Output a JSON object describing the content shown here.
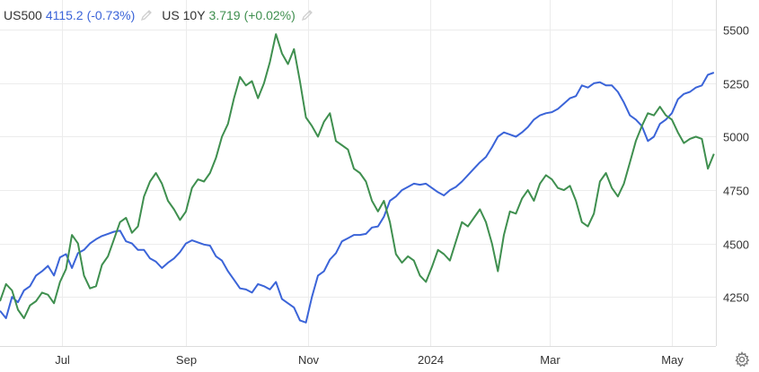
{
  "legend": [
    {
      "symbol": "US500",
      "value": "4115.2",
      "change": "(-0.73%)",
      "color": "#3b64d8"
    },
    {
      "symbol": "US 10Y",
      "value": "3.719",
      "change": "(+0.02%)",
      "color": "#3f8f4f"
    }
  ],
  "chart_data": {
    "type": "line",
    "y_ticks": [
      "5500",
      "5250",
      "5000",
      "4750",
      "4500",
      "4250"
    ],
    "y_tick_values": [
      5500,
      5250,
      5000,
      4750,
      4500,
      4250
    ],
    "ylim": [
      4020,
      5640
    ],
    "x_ticks": [
      "Jul",
      "Sep",
      "Nov",
      "2024",
      "Mar",
      "May"
    ],
    "x_tick_dates": [
      "2023-07-01",
      "2023-09-01",
      "2023-11-01",
      "2024-01-01",
      "2024-03-01",
      "2024-05-01"
    ],
    "xlim": [
      "2023-05-31",
      "2024-05-23"
    ],
    "grid": true,
    "legend_position": "top-left",
    "series": [
      {
        "name": "US500",
        "color": "#3b64d8",
        "points": [
          [
            "2023-05-31",
            4185
          ],
          [
            "2023-06-03",
            4150
          ],
          [
            "2023-06-06",
            4250
          ],
          [
            "2023-06-09",
            4225
          ],
          [
            "2023-06-12",
            4280
          ],
          [
            "2023-06-15",
            4300
          ],
          [
            "2023-06-18",
            4350
          ],
          [
            "2023-06-21",
            4370
          ],
          [
            "2023-06-24",
            4395
          ],
          [
            "2023-06-27",
            4350
          ],
          [
            "2023-06-30",
            4435
          ],
          [
            "2023-07-03",
            4450
          ],
          [
            "2023-07-06",
            4385
          ],
          [
            "2023-07-09",
            4455
          ],
          [
            "2023-07-12",
            4470
          ],
          [
            "2023-07-15",
            4500
          ],
          [
            "2023-07-18",
            4520
          ],
          [
            "2023-07-21",
            4535
          ],
          [
            "2023-07-24",
            4545
          ],
          [
            "2023-07-27",
            4555
          ],
          [
            "2023-07-30",
            4560
          ],
          [
            "2023-08-02",
            4510
          ],
          [
            "2023-08-05",
            4500
          ],
          [
            "2023-08-08",
            4470
          ],
          [
            "2023-08-11",
            4470
          ],
          [
            "2023-08-14",
            4430
          ],
          [
            "2023-08-17",
            4415
          ],
          [
            "2023-08-20",
            4385
          ],
          [
            "2023-08-23",
            4410
          ],
          [
            "2023-08-26",
            4430
          ],
          [
            "2023-08-29",
            4460
          ],
          [
            "2023-09-01",
            4500
          ],
          [
            "2023-09-04",
            4515
          ],
          [
            "2023-09-07",
            4505
          ],
          [
            "2023-09-10",
            4495
          ],
          [
            "2023-09-13",
            4490
          ],
          [
            "2023-09-16",
            4440
          ],
          [
            "2023-09-19",
            4420
          ],
          [
            "2023-09-22",
            4370
          ],
          [
            "2023-09-25",
            4330
          ],
          [
            "2023-09-28",
            4290
          ],
          [
            "2023-10-01",
            4285
          ],
          [
            "2023-10-04",
            4270
          ],
          [
            "2023-10-07",
            4310
          ],
          [
            "2023-10-10",
            4300
          ],
          [
            "2023-10-13",
            4285
          ],
          [
            "2023-10-16",
            4320
          ],
          [
            "2023-10-19",
            4240
          ],
          [
            "2023-10-22",
            4220
          ],
          [
            "2023-10-25",
            4200
          ],
          [
            "2023-10-28",
            4140
          ],
          [
            "2023-10-31",
            4130
          ],
          [
            "2023-11-03",
            4250
          ],
          [
            "2023-11-06",
            4350
          ],
          [
            "2023-11-09",
            4370
          ],
          [
            "2023-11-12",
            4425
          ],
          [
            "2023-11-15",
            4455
          ],
          [
            "2023-11-18",
            4510
          ],
          [
            "2023-11-21",
            4525
          ],
          [
            "2023-11-24",
            4540
          ],
          [
            "2023-11-27",
            4540
          ],
          [
            "2023-11-30",
            4545
          ],
          [
            "2023-12-03",
            4575
          ],
          [
            "2023-12-06",
            4580
          ],
          [
            "2023-12-09",
            4625
          ],
          [
            "2023-12-12",
            4700
          ],
          [
            "2023-12-15",
            4720
          ],
          [
            "2023-12-18",
            4750
          ],
          [
            "2023-12-21",
            4765
          ],
          [
            "2023-12-24",
            4780
          ],
          [
            "2023-12-27",
            4775
          ],
          [
            "2023-12-30",
            4780
          ],
          [
            "2024-01-02",
            4760
          ],
          [
            "2024-01-05",
            4740
          ],
          [
            "2024-01-08",
            4725
          ],
          [
            "2024-01-11",
            4750
          ],
          [
            "2024-01-14",
            4765
          ],
          [
            "2024-01-17",
            4790
          ],
          [
            "2024-01-20",
            4820
          ],
          [
            "2024-01-23",
            4850
          ],
          [
            "2024-01-26",
            4880
          ],
          [
            "2024-01-29",
            4905
          ],
          [
            "2024-02-01",
            4950
          ],
          [
            "2024-02-04",
            5000
          ],
          [
            "2024-02-07",
            5020
          ],
          [
            "2024-02-10",
            5010
          ],
          [
            "2024-02-13",
            5000
          ],
          [
            "2024-02-16",
            5020
          ],
          [
            "2024-02-19",
            5045
          ],
          [
            "2024-02-22",
            5080
          ],
          [
            "2024-02-25",
            5100
          ],
          [
            "2024-02-28",
            5110
          ],
          [
            "2024-03-02",
            5115
          ],
          [
            "2024-03-05",
            5130
          ],
          [
            "2024-03-08",
            5155
          ],
          [
            "2024-03-11",
            5180
          ],
          [
            "2024-03-14",
            5190
          ],
          [
            "2024-03-17",
            5240
          ],
          [
            "2024-03-20",
            5230
          ],
          [
            "2024-03-23",
            5250
          ],
          [
            "2024-03-26",
            5255
          ],
          [
            "2024-03-29",
            5240
          ],
          [
            "2024-04-01",
            5240
          ],
          [
            "2024-04-04",
            5210
          ],
          [
            "2024-04-07",
            5160
          ],
          [
            "2024-04-10",
            5100
          ],
          [
            "2024-04-13",
            5080
          ],
          [
            "2024-04-16",
            5050
          ],
          [
            "2024-04-19",
            4980
          ],
          [
            "2024-04-22",
            5000
          ],
          [
            "2024-04-25",
            5060
          ],
          [
            "2024-04-28",
            5080
          ],
          [
            "2024-05-01",
            5110
          ],
          [
            "2024-05-04",
            5175
          ],
          [
            "2024-05-07",
            5200
          ],
          [
            "2024-05-10",
            5210
          ],
          [
            "2024-05-13",
            5230
          ],
          [
            "2024-05-16",
            5240
          ],
          [
            "2024-05-19",
            5290
          ],
          [
            "2024-05-22",
            5300
          ]
        ]
      },
      {
        "name": "US 10Y",
        "color": "#3f8f4f",
        "points": [
          [
            "2023-05-31",
            4230
          ],
          [
            "2023-06-03",
            4310
          ],
          [
            "2023-06-06",
            4280
          ],
          [
            "2023-06-09",
            4190
          ],
          [
            "2023-06-12",
            4150
          ],
          [
            "2023-06-15",
            4210
          ],
          [
            "2023-06-18",
            4230
          ],
          [
            "2023-06-21",
            4270
          ],
          [
            "2023-06-24",
            4260
          ],
          [
            "2023-06-27",
            4220
          ],
          [
            "2023-06-30",
            4320
          ],
          [
            "2023-07-03",
            4380
          ],
          [
            "2023-07-06",
            4540
          ],
          [
            "2023-07-09",
            4500
          ],
          [
            "2023-07-12",
            4350
          ],
          [
            "2023-07-15",
            4290
          ],
          [
            "2023-07-18",
            4300
          ],
          [
            "2023-07-21",
            4400
          ],
          [
            "2023-07-24",
            4440
          ],
          [
            "2023-07-27",
            4520
          ],
          [
            "2023-07-30",
            4600
          ],
          [
            "2023-08-02",
            4620
          ],
          [
            "2023-08-05",
            4550
          ],
          [
            "2023-08-08",
            4580
          ],
          [
            "2023-08-11",
            4720
          ],
          [
            "2023-08-14",
            4790
          ],
          [
            "2023-08-17",
            4830
          ],
          [
            "2023-08-20",
            4780
          ],
          [
            "2023-08-23",
            4700
          ],
          [
            "2023-08-26",
            4660
          ],
          [
            "2023-08-29",
            4610
          ],
          [
            "2023-09-01",
            4650
          ],
          [
            "2023-09-04",
            4760
          ],
          [
            "2023-09-07",
            4800
          ],
          [
            "2023-09-10",
            4790
          ],
          [
            "2023-09-13",
            4830
          ],
          [
            "2023-09-16",
            4900
          ],
          [
            "2023-09-19",
            5000
          ],
          [
            "2023-09-22",
            5060
          ],
          [
            "2023-09-25",
            5180
          ],
          [
            "2023-09-28",
            5280
          ],
          [
            "2023-10-01",
            5240
          ],
          [
            "2023-10-04",
            5260
          ],
          [
            "2023-10-07",
            5180
          ],
          [
            "2023-10-10",
            5250
          ],
          [
            "2023-10-13",
            5350
          ],
          [
            "2023-10-16",
            5480
          ],
          [
            "2023-10-19",
            5390
          ],
          [
            "2023-10-22",
            5340
          ],
          [
            "2023-10-25",
            5410
          ],
          [
            "2023-10-28",
            5260
          ],
          [
            "2023-10-31",
            5090
          ],
          [
            "2023-11-03",
            5050
          ],
          [
            "2023-11-06",
            5000
          ],
          [
            "2023-11-09",
            5070
          ],
          [
            "2023-11-12",
            5110
          ],
          [
            "2023-11-15",
            4980
          ],
          [
            "2023-11-18",
            4960
          ],
          [
            "2023-11-21",
            4940
          ],
          [
            "2023-11-24",
            4850
          ],
          [
            "2023-11-27",
            4830
          ],
          [
            "2023-11-30",
            4790
          ],
          [
            "2023-12-03",
            4700
          ],
          [
            "2023-12-06",
            4650
          ],
          [
            "2023-12-09",
            4700
          ],
          [
            "2023-12-12",
            4600
          ],
          [
            "2023-12-15",
            4450
          ],
          [
            "2023-12-18",
            4410
          ],
          [
            "2023-12-21",
            4440
          ],
          [
            "2023-12-24",
            4420
          ],
          [
            "2023-12-27",
            4350
          ],
          [
            "2023-12-30",
            4320
          ],
          [
            "2024-01-02",
            4390
          ],
          [
            "2024-01-05",
            4470
          ],
          [
            "2024-01-08",
            4450
          ],
          [
            "2024-01-11",
            4420
          ],
          [
            "2024-01-14",
            4510
          ],
          [
            "2024-01-17",
            4600
          ],
          [
            "2024-01-20",
            4580
          ],
          [
            "2024-01-23",
            4620
          ],
          [
            "2024-01-26",
            4660
          ],
          [
            "2024-01-29",
            4600
          ],
          [
            "2024-02-01",
            4500
          ],
          [
            "2024-02-04",
            4370
          ],
          [
            "2024-02-07",
            4540
          ],
          [
            "2024-02-10",
            4650
          ],
          [
            "2024-02-13",
            4640
          ],
          [
            "2024-02-16",
            4710
          ],
          [
            "2024-02-19",
            4750
          ],
          [
            "2024-02-22",
            4700
          ],
          [
            "2024-02-25",
            4780
          ],
          [
            "2024-02-28",
            4820
          ],
          [
            "2024-03-02",
            4800
          ],
          [
            "2024-03-05",
            4760
          ],
          [
            "2024-03-08",
            4750
          ],
          [
            "2024-03-11",
            4770
          ],
          [
            "2024-03-14",
            4700
          ],
          [
            "2024-03-17",
            4600
          ],
          [
            "2024-03-20",
            4580
          ],
          [
            "2024-03-23",
            4640
          ],
          [
            "2024-03-26",
            4790
          ],
          [
            "2024-03-29",
            4830
          ],
          [
            "2024-04-01",
            4760
          ],
          [
            "2024-04-04",
            4720
          ],
          [
            "2024-04-07",
            4780
          ],
          [
            "2024-04-10",
            4880
          ],
          [
            "2024-04-13",
            4980
          ],
          [
            "2024-04-16",
            5050
          ],
          [
            "2024-04-19",
            5110
          ],
          [
            "2024-04-22",
            5100
          ],
          [
            "2024-04-25",
            5140
          ],
          [
            "2024-04-28",
            5100
          ],
          [
            "2024-05-01",
            5080
          ],
          [
            "2024-05-04",
            5020
          ],
          [
            "2024-05-07",
            4970
          ],
          [
            "2024-05-10",
            4990
          ],
          [
            "2024-05-13",
            5000
          ],
          [
            "2024-05-16",
            4990
          ],
          [
            "2024-05-19",
            4850
          ],
          [
            "2024-05-22",
            4920
          ]
        ]
      }
    ]
  },
  "icons": {
    "edit": "pencil-icon",
    "settings": "gear-icon"
  }
}
